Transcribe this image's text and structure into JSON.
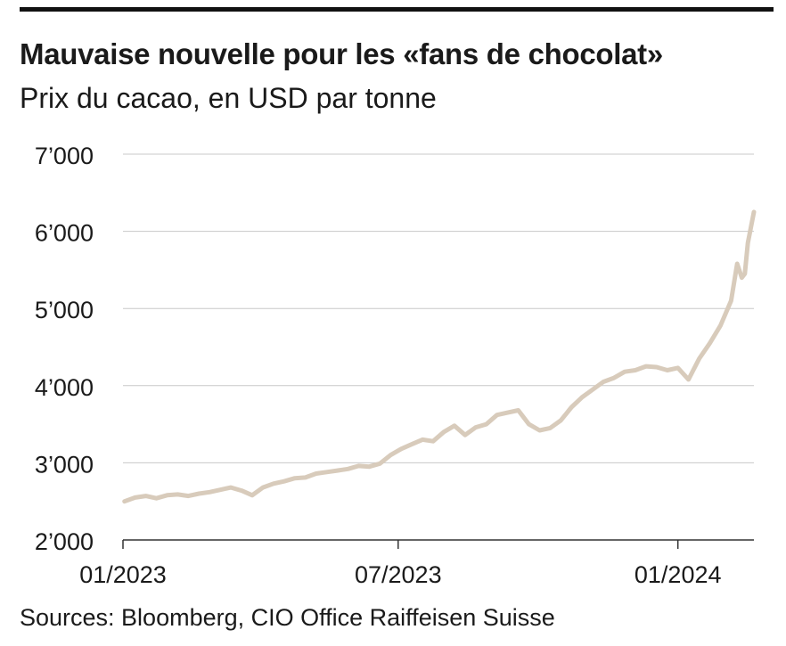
{
  "header": {
    "title": "Mauvaise nouvelle pour les «fans de chocolat»",
    "subtitle": "Prix du cacao, en USD par tonne"
  },
  "footer": {
    "source": "Sources: Bloomberg, CIO Office Raiffeisen Suisse"
  },
  "colors": {
    "series": "#d8cbbb",
    "grid": "#c8c8c8",
    "axis": "#333333",
    "rule": "#111111"
  },
  "chart_data": {
    "type": "line",
    "title": "Mauvaise nouvelle pour les «fans de chocolat»",
    "subtitle": "Prix du cacao, en USD par tonne",
    "xlabel": "",
    "ylabel": "",
    "grid": true,
    "ylim": [
      2000,
      7000
    ],
    "xlim": [
      "2023-01-01",
      "2024-02-20"
    ],
    "y_ticks": [
      {
        "value": 2000,
        "label": "2’000"
      },
      {
        "value": 3000,
        "label": "3’000"
      },
      {
        "value": 4000,
        "label": "4’000"
      },
      {
        "value": 5000,
        "label": "5’000"
      },
      {
        "value": 6000,
        "label": "6’000"
      },
      {
        "value": 7000,
        "label": "7’000"
      }
    ],
    "x_ticks": [
      {
        "value": "2023-01-01",
        "label": "01/2023"
      },
      {
        "value": "2023-07-01",
        "label": "07/2023"
      },
      {
        "value": "2024-01-01",
        "label": "01/2024"
      }
    ],
    "series": [
      {
        "x": [
          "2023-01-02",
          "2023-01-09",
          "2023-01-16",
          "2023-01-23",
          "2023-01-30",
          "2023-02-06",
          "2023-02-13",
          "2023-02-20",
          "2023-02-27",
          "2023-03-06",
          "2023-03-13",
          "2023-03-20",
          "2023-03-27",
          "2023-04-03",
          "2023-04-10",
          "2023-04-17",
          "2023-04-24",
          "2023-05-01",
          "2023-05-08",
          "2023-05-15",
          "2023-05-22",
          "2023-05-29",
          "2023-06-05",
          "2023-06-12",
          "2023-06-19",
          "2023-06-26",
          "2023-07-03",
          "2023-07-10",
          "2023-07-17",
          "2023-07-24",
          "2023-07-31",
          "2023-08-07",
          "2023-08-14",
          "2023-08-21",
          "2023-08-28",
          "2023-09-04",
          "2023-09-11",
          "2023-09-18",
          "2023-09-25",
          "2023-10-02",
          "2023-10-09",
          "2023-10-16",
          "2023-10-23",
          "2023-10-30",
          "2023-11-06",
          "2023-11-13",
          "2023-11-20",
          "2023-11-27",
          "2023-12-04",
          "2023-12-11",
          "2023-12-18",
          "2023-12-25",
          "2024-01-01",
          "2024-01-08",
          "2024-01-15",
          "2024-01-22",
          "2024-01-29",
          "2024-02-05",
          "2024-02-09",
          "2024-02-12",
          "2024-02-14",
          "2024-02-16",
          "2024-02-20"
        ],
        "values": [
          2500,
          2550,
          2570,
          2540,
          2580,
          2590,
          2570,
          2600,
          2620,
          2650,
          2680,
          2640,
          2580,
          2680,
          2730,
          2760,
          2800,
          2810,
          2860,
          2880,
          2900,
          2920,
          2960,
          2950,
          2990,
          3100,
          3180,
          3240,
          3300,
          3280,
          3400,
          3480,
          3360,
          3460,
          3500,
          3620,
          3650,
          3680,
          3500,
          3420,
          3450,
          3550,
          3720,
          3850,
          3950,
          4050,
          4100,
          4180,
          4200,
          4250,
          4240,
          4200,
          4230,
          4080,
          4350,
          4550,
          4780,
          5100,
          5580,
          5400,
          5450,
          5850,
          6250
        ]
      }
    ]
  }
}
